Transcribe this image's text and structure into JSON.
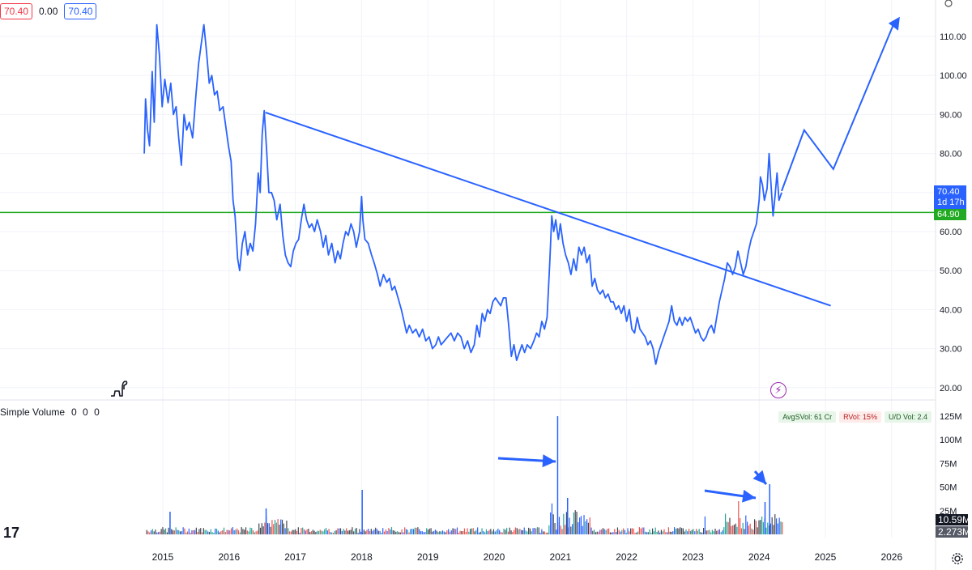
{
  "header": {
    "price_left": "70.40",
    "change": "0.00",
    "price_right": "70.40"
  },
  "volume_panel": {
    "title": "Simple Volume",
    "overlay_values": "0  0  0",
    "badges": [
      {
        "label": "AvgSVol: 61 Cr",
        "tone": "green"
      },
      {
        "label": "RVol: 15%",
        "tone": "red"
      },
      {
        "label": "U/D Vol: 2.4",
        "tone": "green"
      }
    ],
    "last_volume": "10.59M",
    "avg_volume": "2.273M",
    "y_ticks": [
      "125M",
      "100M",
      "75M",
      "50M",
      "25M"
    ]
  },
  "price_tags": {
    "last": "70.40",
    "countdown": "1d 17h",
    "level": "64.90"
  },
  "colors": {
    "line": "#2962ff",
    "support": "#22ab22",
    "vol_up": "#26a69a",
    "vol_down": "#ef5350",
    "vol_neutral": "#434651"
  },
  "chart_data": {
    "type": "line",
    "title": "",
    "xlabel": "",
    "ylabel": "",
    "x_ticks": [
      "2015",
      "2016",
      "2017",
      "2018",
      "2019",
      "2020",
      "2021",
      "2022",
      "2023",
      "2024",
      "2025",
      "2026"
    ],
    "y_ticks": [
      "110.00",
      "100.00",
      "90.00",
      "80.00",
      "70.00",
      "60.00",
      "50.00",
      "40.00",
      "30.00",
      "20.00"
    ],
    "ylim": [
      18,
      118
    ],
    "xlim": [
      2014.6,
      2026.7
    ],
    "series": [
      {
        "values": [
          [
            2014.72,
            80
          ],
          [
            2014.74,
            94
          ],
          [
            2014.77,
            86
          ],
          [
            2014.8,
            82
          ],
          [
            2014.84,
            101
          ],
          [
            2014.87,
            88
          ],
          [
            2014.91,
            113
          ],
          [
            2014.95,
            105
          ],
          [
            2014.99,
            92
          ],
          [
            2015.03,
            99
          ],
          [
            2015.08,
            93
          ],
          [
            2015.12,
            98
          ],
          [
            2015.16,
            90
          ],
          [
            2015.2,
            92
          ],
          [
            2015.24,
            84
          ],
          [
            2015.28,
            77
          ],
          [
            2015.32,
            90
          ],
          [
            2015.36,
            86
          ],
          [
            2015.4,
            88
          ],
          [
            2015.45,
            84
          ],
          [
            2015.5,
            95
          ],
          [
            2015.54,
            103
          ],
          [
            2015.58,
            108
          ],
          [
            2015.62,
            113
          ],
          [
            2015.66,
            106
          ],
          [
            2015.7,
            98
          ],
          [
            2015.74,
            100
          ],
          [
            2015.78,
            95
          ],
          [
            2015.82,
            96
          ],
          [
            2015.86,
            91
          ],
          [
            2015.91,
            92
          ],
          [
            2015.95,
            87
          ],
          [
            2015.99,
            82
          ],
          [
            2016.03,
            78
          ],
          [
            2016.06,
            68
          ],
          [
            2016.09,
            64
          ],
          [
            2016.13,
            53
          ],
          [
            2016.16,
            50
          ],
          [
            2016.2,
            57
          ],
          [
            2016.24,
            60
          ],
          [
            2016.28,
            54
          ],
          [
            2016.32,
            57
          ],
          [
            2016.36,
            55
          ],
          [
            2016.4,
            62
          ],
          [
            2016.44,
            75
          ],
          [
            2016.47,
            70
          ],
          [
            2016.5,
            85
          ],
          [
            2016.53,
            91
          ],
          [
            2016.57,
            80
          ],
          [
            2016.6,
            70
          ],
          [
            2016.64,
            70
          ],
          [
            2016.68,
            68
          ],
          [
            2016.72,
            63
          ],
          [
            2016.77,
            67
          ],
          [
            2016.81,
            59
          ],
          [
            2016.85,
            54
          ],
          [
            2016.89,
            52
          ],
          [
            2016.93,
            51
          ],
          [
            2016.97,
            55
          ],
          [
            2017.01,
            57
          ],
          [
            2017.05,
            58
          ],
          [
            2017.09,
            63
          ],
          [
            2017.13,
            67
          ],
          [
            2017.17,
            63
          ],
          [
            2017.21,
            61
          ],
          [
            2017.25,
            62
          ],
          [
            2017.29,
            60
          ],
          [
            2017.33,
            63
          ],
          [
            2017.38,
            60
          ],
          [
            2017.42,
            56
          ],
          [
            2017.46,
            59
          ],
          [
            2017.5,
            54
          ],
          [
            2017.55,
            57
          ],
          [
            2017.6,
            52
          ],
          [
            2017.64,
            55
          ],
          [
            2017.68,
            53
          ],
          [
            2017.72,
            57
          ],
          [
            2017.76,
            60
          ],
          [
            2017.8,
            59
          ],
          [
            2017.84,
            62
          ],
          [
            2017.88,
            60
          ],
          [
            2017.92,
            56
          ],
          [
            2017.97,
            60
          ],
          [
            2018.0,
            69
          ],
          [
            2018.02,
            63
          ],
          [
            2018.05,
            58
          ],
          [
            2018.1,
            57
          ],
          [
            2018.15,
            54
          ],
          [
            2018.19,
            52
          ],
          [
            2018.24,
            49
          ],
          [
            2018.28,
            46
          ],
          [
            2018.33,
            49
          ],
          [
            2018.38,
            47
          ],
          [
            2018.42,
            48
          ],
          [
            2018.46,
            45
          ],
          [
            2018.5,
            46
          ],
          [
            2018.55,
            43
          ],
          [
            2018.6,
            40
          ],
          [
            2018.64,
            37
          ],
          [
            2018.68,
            34
          ],
          [
            2018.72,
            36
          ],
          [
            2018.77,
            34
          ],
          [
            2018.82,
            35
          ],
          [
            2018.87,
            33
          ],
          [
            2018.92,
            35
          ],
          [
            2018.97,
            32
          ],
          [
            2019.02,
            33
          ],
          [
            2019.07,
            30
          ],
          [
            2019.12,
            31
          ],
          [
            2019.16,
            33
          ],
          [
            2019.2,
            31
          ],
          [
            2019.25,
            32
          ],
          [
            2019.3,
            33
          ],
          [
            2019.35,
            34
          ],
          [
            2019.4,
            32
          ],
          [
            2019.45,
            34
          ],
          [
            2019.5,
            33
          ],
          [
            2019.55,
            30
          ],
          [
            2019.6,
            32
          ],
          [
            2019.65,
            29
          ],
          [
            2019.7,
            31
          ],
          [
            2019.74,
            36
          ],
          [
            2019.78,
            33
          ],
          [
            2019.82,
            39
          ],
          [
            2019.86,
            37
          ],
          [
            2019.9,
            40
          ],
          [
            2019.94,
            39
          ],
          [
            2019.98,
            42
          ],
          [
            2020.02,
            43
          ],
          [
            2020.06,
            42
          ],
          [
            2020.1,
            41
          ],
          [
            2020.14,
            43
          ],
          [
            2020.18,
            43
          ],
          [
            2020.22,
            36
          ],
          [
            2020.26,
            28
          ],
          [
            2020.3,
            31
          ],
          [
            2020.34,
            27
          ],
          [
            2020.38,
            29
          ],
          [
            2020.42,
            31
          ],
          [
            2020.46,
            29
          ],
          [
            2020.5,
            31
          ],
          [
            2020.55,
            30
          ],
          [
            2020.6,
            32
          ],
          [
            2020.64,
            34
          ],
          [
            2020.68,
            33
          ],
          [
            2020.72,
            37
          ],
          [
            2020.76,
            35
          ],
          [
            2020.8,
            38
          ],
          [
            2020.84,
            52
          ],
          [
            2020.87,
            64
          ],
          [
            2020.9,
            60
          ],
          [
            2020.93,
            63
          ],
          [
            2020.97,
            58
          ],
          [
            2021.0,
            62
          ],
          [
            2021.04,
            57
          ],
          [
            2021.08,
            54
          ],
          [
            2021.12,
            52
          ],
          [
            2021.16,
            49
          ],
          [
            2021.2,
            53
          ],
          [
            2021.24,
            50
          ],
          [
            2021.28,
            56
          ],
          [
            2021.32,
            54
          ],
          [
            2021.36,
            56
          ],
          [
            2021.4,
            52
          ],
          [
            2021.44,
            54
          ],
          [
            2021.48,
            46
          ],
          [
            2021.52,
            48
          ],
          [
            2021.56,
            45
          ],
          [
            2021.6,
            44
          ],
          [
            2021.64,
            45
          ],
          [
            2021.68,
            43
          ],
          [
            2021.72,
            44
          ],
          [
            2021.76,
            42
          ],
          [
            2021.8,
            42
          ],
          [
            2021.84,
            40
          ],
          [
            2021.88,
            41
          ],
          [
            2021.92,
            39
          ],
          [
            2021.96,
            41
          ],
          [
            2022.0,
            37
          ],
          [
            2022.04,
            40
          ],
          [
            2022.08,
            35
          ],
          [
            2022.12,
            34
          ],
          [
            2022.16,
            38
          ],
          [
            2022.2,
            35
          ],
          [
            2022.24,
            34
          ],
          [
            2022.28,
            33
          ],
          [
            2022.32,
            31
          ],
          [
            2022.36,
            32
          ],
          [
            2022.4,
            30
          ],
          [
            2022.44,
            26
          ],
          [
            2022.48,
            29
          ],
          [
            2022.52,
            31
          ],
          [
            2022.56,
            33
          ],
          [
            2022.6,
            35
          ],
          [
            2022.64,
            37
          ],
          [
            2022.68,
            41
          ],
          [
            2022.72,
            37
          ],
          [
            2022.76,
            36
          ],
          [
            2022.8,
            38
          ],
          [
            2022.84,
            36
          ],
          [
            2022.88,
            38
          ],
          [
            2022.92,
            37
          ],
          [
            2022.96,
            38
          ],
          [
            2023.0,
            36
          ],
          [
            2023.04,
            34
          ],
          [
            2023.08,
            35
          ],
          [
            2023.12,
            33
          ],
          [
            2023.16,
            32
          ],
          [
            2023.2,
            33
          ],
          [
            2023.24,
            35
          ],
          [
            2023.28,
            36
          ],
          [
            2023.32,
            34
          ],
          [
            2023.36,
            38
          ],
          [
            2023.4,
            42
          ],
          [
            2023.44,
            45
          ],
          [
            2023.48,
            48
          ],
          [
            2023.52,
            52
          ],
          [
            2023.56,
            51
          ],
          [
            2023.6,
            49
          ],
          [
            2023.64,
            51
          ],
          [
            2023.68,
            55
          ],
          [
            2023.72,
            52
          ],
          [
            2023.76,
            49
          ],
          [
            2023.8,
            51
          ],
          [
            2023.84,
            55
          ],
          [
            2023.88,
            58
          ],
          [
            2023.92,
            60
          ],
          [
            2023.96,
            62
          ],
          [
            2024.0,
            68
          ],
          [
            2024.02,
            74
          ],
          [
            2024.05,
            72
          ],
          [
            2024.08,
            68
          ],
          [
            2024.12,
            71
          ],
          [
            2024.15,
            80
          ],
          [
            2024.18,
            72
          ],
          [
            2024.21,
            64
          ],
          [
            2024.24,
            69
          ],
          [
            2024.27,
            75
          ],
          [
            2024.3,
            68
          ],
          [
            2024.34,
            70
          ]
        ]
      }
    ],
    "annotations": {
      "trendline": [
        [
          2016.55,
          90.5
        ],
        [
          2025.08,
          41
        ]
      ],
      "support_level": 64.9,
      "projection": [
        [
          2024.34,
          70.4
        ],
        [
          2024.68,
          86
        ],
        [
          2025.12,
          76
        ],
        [
          2026.05,
          114
        ]
      ],
      "volume_spike": {
        "x": 2020.95,
        "value": "125M"
      }
    }
  }
}
